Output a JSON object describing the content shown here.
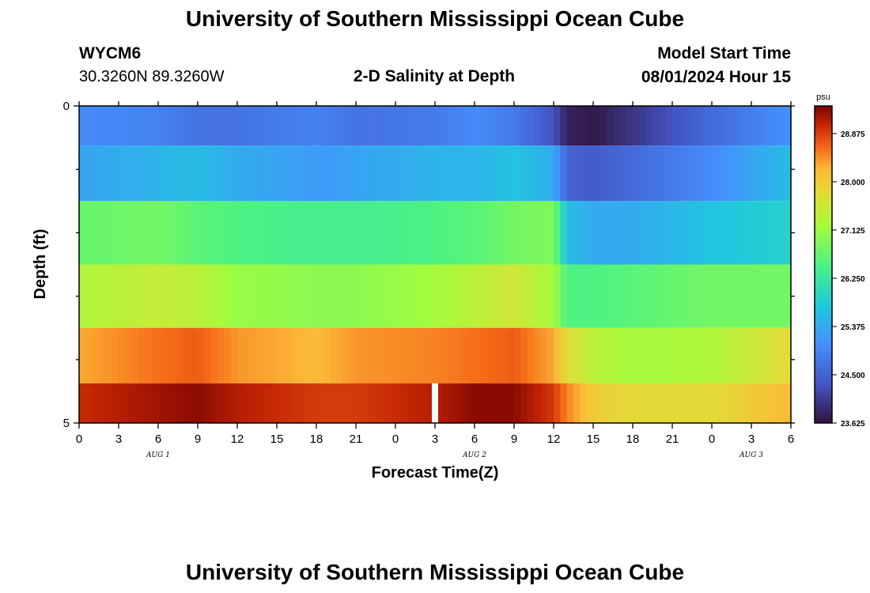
{
  "header": {
    "title": "University of Southern Mississippi Ocean Cube",
    "station_id": "WYCM6",
    "station_coords": "30.3260N  89.3260W",
    "plot_title": "2-D Salinity at Depth",
    "model_start_label": "Model Start Time",
    "model_start_value": "08/01/2024 Hour 15"
  },
  "footer": {
    "title_repeat": "University of Southern Mississippi Ocean Cube"
  },
  "chart_data": {
    "type": "heatmap",
    "title": "2-D Salinity at Depth",
    "xlabel": "Forecast Time(Z)",
    "ylabel": "Depth (ft)",
    "x_ticks": [
      "0",
      "3",
      "6",
      "9",
      "12",
      "15",
      "18",
      "21",
      "0",
      "3",
      "6",
      "9",
      "12",
      "15",
      "18",
      "21",
      "0",
      "3",
      "6"
    ],
    "x_range_hours": [
      0,
      54
    ],
    "date_labels": [
      {
        "text": "AUG 1",
        "hour": 6
      },
      {
        "text": "AUG 2",
        "hour": 30
      },
      {
        "text": "AUG 3",
        "hour": 51
      }
    ],
    "y_ticks": [
      "0",
      "5"
    ],
    "ylim": [
      0,
      5
    ],
    "colorbar": {
      "unit": "psu",
      "min": 23.625,
      "max": 29.375,
      "tick_labels": [
        "28.875",
        "28.000",
        "27.125",
        "26.250",
        "25.375",
        "24.500",
        "23.625"
      ]
    },
    "layer_depths_ft": [
      0.25,
      1.0,
      2.0,
      3.0,
      4.0,
      4.75
    ],
    "time_knots_hours": [
      0,
      6,
      9,
      12,
      18,
      21,
      27,
      30,
      33,
      36,
      37,
      39,
      42,
      48,
      54
    ],
    "salinity_psu": [
      [
        25.0,
        24.9,
        24.7,
        24.7,
        24.9,
        24.7,
        24.8,
        25.0,
        24.8,
        24.3,
        23.8,
        23.7,
        24.0,
        24.6,
        25.1
      ],
      [
        25.3,
        25.5,
        25.6,
        25.4,
        25.2,
        25.3,
        25.5,
        25.5,
        25.7,
        25.4,
        24.5,
        24.4,
        24.6,
        25.0,
        25.6
      ],
      [
        26.7,
        26.8,
        26.6,
        26.5,
        26.4,
        26.4,
        26.5,
        26.6,
        26.8,
        26.9,
        25.6,
        25.4,
        25.4,
        25.7,
        25.9
      ],
      [
        27.3,
        27.5,
        27.4,
        27.1,
        27.0,
        27.0,
        27.2,
        27.4,
        27.6,
        27.2,
        26.5,
        26.5,
        26.6,
        26.8,
        26.8
      ],
      [
        28.3,
        28.6,
        28.7,
        28.4,
        28.2,
        28.4,
        28.5,
        28.6,
        28.7,
        28.3,
        27.8,
        27.4,
        27.2,
        27.3,
        27.8
      ],
      [
        29.0,
        29.2,
        29.3,
        29.1,
        28.9,
        28.9,
        29.1,
        29.3,
        29.3,
        28.9,
        28.5,
        28.0,
        27.8,
        27.8,
        28.2
      ]
    ],
    "missing_hours": [
      27
    ]
  }
}
